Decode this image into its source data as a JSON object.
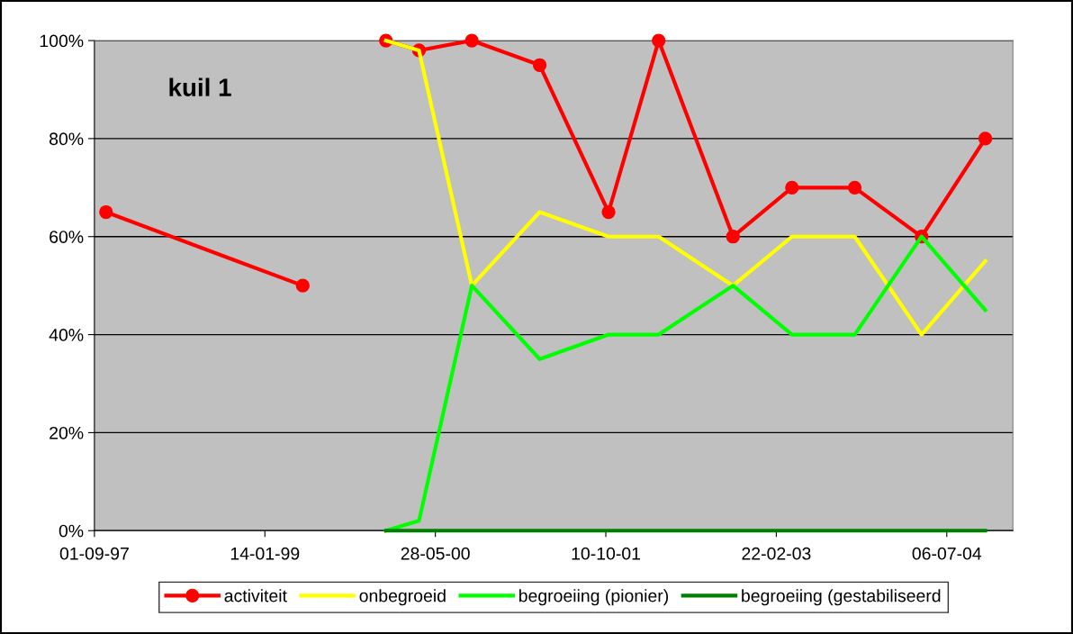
{
  "chart_data": {
    "type": "line",
    "title": "kuil 1",
    "x": [
      "1997-10-05",
      "1999-05-05",
      "1999-09-01",
      "2000-01-04",
      "2000-04-10",
      "2000-09-12",
      "2001-03-30",
      "2001-10-18",
      "2002-03-14",
      "2002-10-18",
      "2003-04-09",
      "2003-10-10",
      "2004-04-23",
      "2004-10-27"
    ],
    "series": [
      {
        "name": "activiteit",
        "color": "#ff0000",
        "marker": "circle",
        "values": [
          65,
          50,
          null,
          100,
          98,
          100,
          95,
          65,
          100,
          60,
          70,
          70,
          60,
          80
        ]
      },
      {
        "name": "onbegroeid",
        "color": "#ffff00",
        "marker": "none",
        "values": [
          null,
          null,
          null,
          100,
          98,
          50,
          65,
          60,
          60,
          50,
          60,
          60,
          40,
          55
        ]
      },
      {
        "name": "begroeiing (pionier)",
        "color": "#00ff00",
        "marker": "none",
        "values": [
          null,
          null,
          null,
          0,
          2,
          50,
          35,
          40,
          40,
          50,
          40,
          40,
          60,
          45
        ]
      },
      {
        "name": "begroeiing (gestabiliseerd",
        "color": "#008000",
        "marker": "none",
        "values": [
          null,
          null,
          null,
          0,
          0,
          0,
          0,
          0,
          0,
          0,
          0,
          0,
          0,
          0
        ]
      }
    ],
    "xlim": [
      "1997-09-01",
      "2005-01-16"
    ],
    "xticks": [
      {
        "value": "1997-09-01",
        "label": "01-09-97"
      },
      {
        "value": "1999-01-14",
        "label": "14-01-99"
      },
      {
        "value": "2000-05-28",
        "label": "28-05-00"
      },
      {
        "value": "2001-10-10",
        "label": "10-10-01"
      },
      {
        "value": "2003-02-22",
        "label": "22-02-03"
      },
      {
        "value": "2004-07-06",
        "label": "06-07-04"
      }
    ],
    "ylim": [
      0,
      100
    ],
    "yticks": [
      {
        "value": 0,
        "label": "0%"
      },
      {
        "value": 20,
        "label": "20%"
      },
      {
        "value": 40,
        "label": "40%"
      },
      {
        "value": 60,
        "label": "60%"
      },
      {
        "value": 80,
        "label": "80%"
      },
      {
        "value": 100,
        "label": "100%"
      }
    ],
    "grid": "y",
    "legend": "bottom",
    "line_style": "solid"
  }
}
